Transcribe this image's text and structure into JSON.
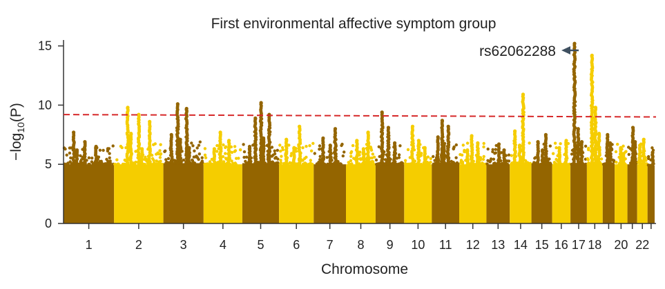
{
  "chart_data": {
    "type": "scatter",
    "title": "First environmental affective symptom group",
    "xlabel": "Chromosome",
    "ylabel_main": "−log",
    "ylabel_sub": "10",
    "ylabel_tail": "(P)",
    "ylim": [
      0,
      15.5
    ],
    "yticks": [
      0,
      5,
      10,
      15
    ],
    "grid": false,
    "significance_threshold": {
      "start": 9.2,
      "end": 9.0,
      "color": "#d62728",
      "style": "dashed"
    },
    "colors": {
      "odd": "#946500",
      "even": "#f5cd00"
    },
    "annotation": {
      "label": "rs62062288",
      "chromosome": 17,
      "value": 15.2,
      "arrow_color": "#3f5060"
    },
    "chromosome_labels": [
      "1",
      "2",
      "3",
      "4",
      "5",
      "6",
      "7",
      "8",
      "9",
      "10",
      "11",
      "12",
      "13",
      "14",
      "15",
      "16",
      "17",
      "18",
      "20",
      "22"
    ],
    "chromosomes": [
      {
        "chr": 1,
        "bulk": 5.0,
        "peaks": [
          7.7,
          6.9,
          6.5,
          6.2
        ]
      },
      {
        "chr": 2,
        "bulk": 5.0,
        "peaks": [
          9.8,
          9.2,
          8.6,
          7.6,
          6.3
        ]
      },
      {
        "chr": 3,
        "bulk": 5.1,
        "peaks": [
          10.1,
          9.7,
          7.5,
          7.1,
          6.4
        ]
      },
      {
        "chr": 4,
        "bulk": 5.0,
        "peaks": [
          7.7,
          7.0,
          6.3
        ]
      },
      {
        "chr": 5,
        "bulk": 5.1,
        "peaks": [
          10.2,
          9.2,
          8.9,
          7.2,
          6.5
        ]
      },
      {
        "chr": 6,
        "bulk": 5.0,
        "peaks": [
          8.2,
          7.1,
          6.4
        ]
      },
      {
        "chr": 7,
        "bulk": 5.0,
        "peaks": [
          8.0,
          7.2,
          6.6
        ]
      },
      {
        "chr": 8,
        "bulk": 5.0,
        "peaks": [
          7.7,
          7.0,
          6.3
        ]
      },
      {
        "chr": 9,
        "bulk": 5.0,
        "peaks": [
          9.4,
          8.1,
          6.8
        ]
      },
      {
        "chr": 10,
        "bulk": 5.0,
        "peaks": [
          8.2,
          7.0,
          6.4
        ]
      },
      {
        "chr": 11,
        "bulk": 5.0,
        "peaks": [
          8.7,
          8.2,
          7.3,
          6.6
        ]
      },
      {
        "chr": 12,
        "bulk": 5.0,
        "peaks": [
          7.4,
          6.8,
          6.2
        ]
      },
      {
        "chr": 13,
        "bulk": 5.0,
        "peaks": [
          6.7,
          6.2
        ]
      },
      {
        "chr": 14,
        "bulk": 5.0,
        "peaks": [
          10.9,
          7.8,
          6.6
        ]
      },
      {
        "chr": 15,
        "bulk": 5.0,
        "peaks": [
          7.5,
          6.9,
          6.2
        ]
      },
      {
        "chr": 16,
        "bulk": 5.0,
        "peaks": [
          7.0,
          6.4
        ]
      },
      {
        "chr": 17,
        "bulk": 5.0,
        "peaks": [
          15.2,
          8.0,
          6.9
        ]
      },
      {
        "chr": 18,
        "bulk": 5.0,
        "peaks": [
          14.2,
          9.8,
          7.6
        ]
      },
      {
        "chr": 19,
        "bulk": 5.0,
        "peaks": [
          7.5,
          6.8
        ]
      },
      {
        "chr": 20,
        "bulk": 5.0,
        "peaks": [
          6.4,
          5.9
        ]
      },
      {
        "chr": 21,
        "bulk": 5.0,
        "peaks": [
          8.1,
          6.9
        ]
      },
      {
        "chr": 22,
        "bulk": 5.0,
        "peaks": [
          7.1,
          6.6
        ]
      },
      {
        "chr": 23,
        "bulk": 4.9,
        "peaks": [
          6.0
        ]
      }
    ]
  }
}
